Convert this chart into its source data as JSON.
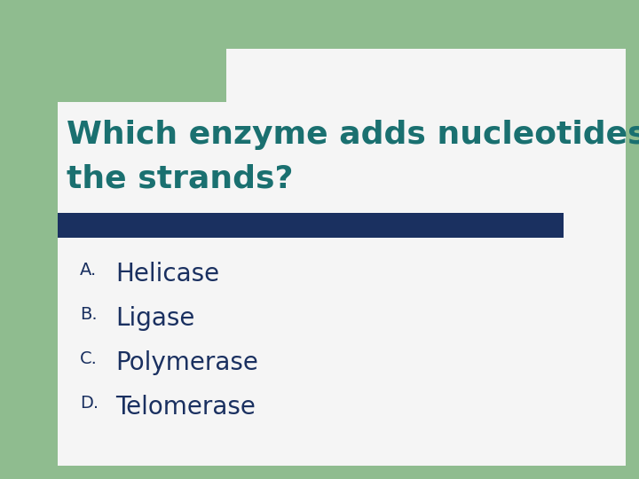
{
  "title_line1": "Which enzyme adds nucleotides to",
  "title_line2": "the strands?",
  "title_color": "#1a7070",
  "background_color": "#8fbc8f",
  "white_bg_color": "#f5f5f5",
  "green_square_color": "#8fbc8f",
  "divider_color": "#1a3060",
  "options": [
    "Helicase",
    "Ligase",
    "Polymerase",
    "Telomerase"
  ],
  "labels": [
    "A.",
    "B.",
    "C.",
    "D."
  ],
  "option_color": "#1a3060",
  "label_color": "#1a3060",
  "title_fontsize": 26,
  "option_fontsize": 20,
  "label_fontsize": 14
}
